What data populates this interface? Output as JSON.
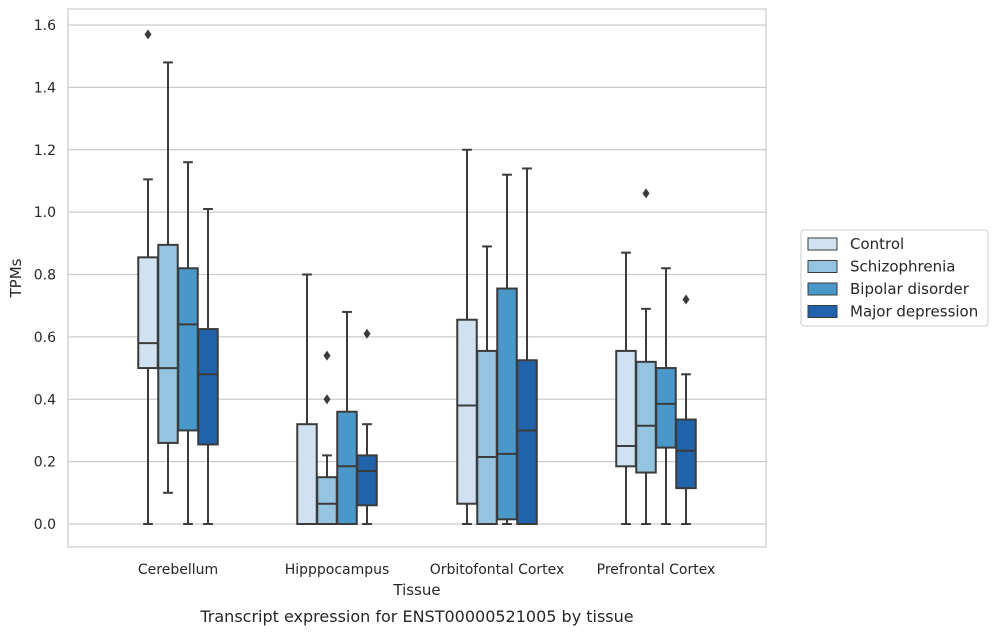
{
  "chart_data": {
    "type": "box",
    "caption": "Transcript expression for ENST00000521005 by tissue",
    "xlabel": "Tissue",
    "ylabel": "TPMs",
    "ylim": [
      -0.075,
      1.65
    ],
    "yticks": [
      0.0,
      0.2,
      0.4,
      0.6,
      0.8,
      1.0,
      1.2,
      1.4,
      1.6
    ],
    "ytick_labels": [
      "0.0",
      "0.2",
      "0.4",
      "0.6",
      "0.8",
      "1.0",
      "1.2",
      "1.4",
      "1.6"
    ],
    "grid": "horizontal",
    "legend_position": "right",
    "categories": [
      "Cerebellum",
      "Hipppocampus",
      "Orbitofontal Cortex",
      "Prefrontal Cortex"
    ],
    "series": [
      {
        "name": "Control",
        "color": "#d0e1f2",
        "boxes": [
          {
            "min": 0.0,
            "q1": 0.5,
            "median": 0.58,
            "q3": 0.855,
            "max": 1.105,
            "outliers": [
              1.57
            ]
          },
          {
            "min": 0.0,
            "q1": 0.0,
            "median": 0.0,
            "q3": 0.32,
            "max": 0.8,
            "outliers": []
          },
          {
            "min": 0.0,
            "q1": 0.065,
            "median": 0.38,
            "q3": 0.655,
            "max": 1.2,
            "outliers": []
          },
          {
            "min": 0.0,
            "q1": 0.185,
            "median": 0.25,
            "q3": 0.555,
            "max": 0.87,
            "outliers": []
          }
        ]
      },
      {
        "name": "Schizophrenia",
        "color": "#94c4df",
        "boxes": [
          {
            "min": 0.1,
            "q1": 0.26,
            "median": 0.5,
            "q3": 0.895,
            "max": 1.48,
            "outliers": []
          },
          {
            "min": 0.0,
            "q1": 0.0,
            "median": 0.065,
            "q3": 0.15,
            "max": 0.22,
            "outliers": [
              0.4,
              0.54
            ]
          },
          {
            "min": 0.0,
            "q1": 0.0,
            "median": 0.215,
            "q3": 0.555,
            "max": 0.89,
            "outliers": []
          },
          {
            "min": 0.0,
            "q1": 0.165,
            "median": 0.315,
            "q3": 0.52,
            "max": 0.69,
            "outliers": [
              1.06
            ]
          }
        ]
      },
      {
        "name": "Bipolar disorder",
        "color": "#4a98c9",
        "boxes": [
          {
            "min": 0.0,
            "q1": 0.3,
            "median": 0.64,
            "q3": 0.82,
            "max": 1.16,
            "outliers": []
          },
          {
            "min": 0.0,
            "q1": 0.0,
            "median": 0.185,
            "q3": 0.36,
            "max": 0.68,
            "outliers": []
          },
          {
            "min": 0.0,
            "q1": 0.015,
            "median": 0.225,
            "q3": 0.755,
            "max": 1.12,
            "outliers": []
          },
          {
            "min": 0.0,
            "q1": 0.245,
            "median": 0.385,
            "q3": 0.5,
            "max": 0.82,
            "outliers": []
          }
        ]
      },
      {
        "name": "Major depression",
        "color": "#2163aa",
        "boxes": [
          {
            "min": 0.0,
            "q1": 0.255,
            "median": 0.48,
            "q3": 0.625,
            "max": 1.01,
            "outliers": []
          },
          {
            "min": 0.0,
            "q1": 0.06,
            "median": 0.17,
            "q3": 0.22,
            "max": 0.32,
            "outliers": [
              0.61
            ]
          },
          {
            "min": 0.0,
            "q1": 0.0,
            "median": 0.3,
            "q3": 0.525,
            "max": 1.14,
            "outliers": []
          },
          {
            "min": 0.0,
            "q1": 0.115,
            "median": 0.235,
            "q3": 0.335,
            "max": 0.48,
            "outliers": [
              0.72
            ]
          }
        ]
      }
    ]
  }
}
